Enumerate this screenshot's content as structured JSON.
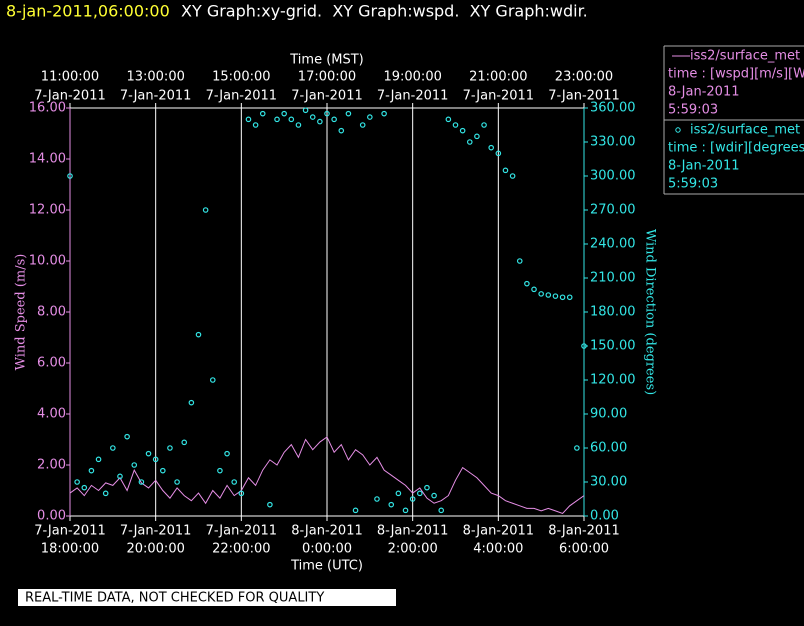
{
  "header": {
    "timestamp": "8-jan-2011,06:00:00",
    "graphs": "XY Graph:xy-grid.  XY Graph:wspd.  XY Graph:wdir."
  },
  "footer": "REAL-TIME DATA, NOT CHECKED FOR QUALITY",
  "chart_data": {
    "type": "xy",
    "x_top_label": "Time (MST)",
    "xlabel": "Time (UTC)",
    "ylabel": "Wind Speed (m/s)",
    "y2label": "Wind Direction (degrees)",
    "xlim": [
      0,
      720
    ],
    "xticks": [
      {
        "value": 0,
        "label": "18:00:00",
        "date": "7-Jan-2011"
      },
      {
        "value": 120,
        "label": "20:00:00",
        "date": "7-Jan-2011"
      },
      {
        "value": 240,
        "label": "22:00:00",
        "date": "7-Jan-2011"
      },
      {
        "value": 360,
        "label": "0:00:00",
        "date": "8-Jan-2011"
      },
      {
        "value": 480,
        "label": "2:00:00",
        "date": "8-Jan-2011"
      },
      {
        "value": 600,
        "label": "4:00:00",
        "date": "8-Jan-2011"
      },
      {
        "value": 720,
        "label": "6:00:00",
        "date": "8-Jan-2011"
      }
    ],
    "x2ticks": [
      {
        "value": 0,
        "label": "11:00:00",
        "date": "7-Jan-2011"
      },
      {
        "value": 120,
        "label": "13:00:00",
        "date": "7-Jan-2011"
      },
      {
        "value": 240,
        "label": "15:00:00",
        "date": "7-Jan-2011"
      },
      {
        "value": 360,
        "label": "17:00:00",
        "date": "7-Jan-2011"
      },
      {
        "value": 480,
        "label": "19:00:00",
        "date": "7-Jan-2011"
      },
      {
        "value": 600,
        "label": "21:00:00",
        "date": "7-Jan-2011"
      },
      {
        "value": 720,
        "label": "23:00:00",
        "date": "7-Jan-2011"
      }
    ],
    "grid": true,
    "ylim": [
      0,
      16
    ],
    "yticks": [
      {
        "value": 0,
        "label": "0.00"
      },
      {
        "value": 2,
        "label": "2.00"
      },
      {
        "value": 4,
        "label": "4.00"
      },
      {
        "value": 6,
        "label": "6.00"
      },
      {
        "value": 8,
        "label": "8.00"
      },
      {
        "value": 10,
        "label": "10.00"
      },
      {
        "value": 12,
        "label": "12.00"
      },
      {
        "value": 14,
        "label": "14.00"
      },
      {
        "value": 16,
        "label": "16.00"
      }
    ],
    "y2lim": [
      0,
      360
    ],
    "y2ticks": [
      {
        "value": 0,
        "label": "0.00"
      },
      {
        "value": 30,
        "label": "30.00"
      },
      {
        "value": 60,
        "label": "60.00"
      },
      {
        "value": 90,
        "label": "90.00"
      },
      {
        "value": 120,
        "label": "120.00"
      },
      {
        "value": 150,
        "label": "150.00"
      },
      {
        "value": 180,
        "label": "180.00"
      },
      {
        "value": 210,
        "label": "210.00"
      },
      {
        "value": 240,
        "label": "240.00"
      },
      {
        "value": 270,
        "label": "270.00"
      },
      {
        "value": 300,
        "label": "300.00"
      },
      {
        "value": 330,
        "label": "330.00"
      },
      {
        "value": 360,
        "label": "360.00"
      }
    ],
    "x": [
      0,
      10,
      20,
      30,
      40,
      50,
      60,
      70,
      80,
      90,
      100,
      110,
      120,
      130,
      140,
      150,
      160,
      170,
      180,
      190,
      200,
      210,
      220,
      230,
      240,
      250,
      260,
      270,
      280,
      290,
      300,
      310,
      320,
      330,
      340,
      350,
      360,
      370,
      380,
      390,
      400,
      410,
      420,
      430,
      440,
      450,
      460,
      470,
      480,
      490,
      500,
      510,
      520,
      530,
      540,
      550,
      560,
      570,
      580,
      590,
      600,
      610,
      620,
      630,
      640,
      650,
      660,
      670,
      680,
      690,
      700,
      710,
      720
    ],
    "series": [
      {
        "name": "iss2/surface_met",
        "legend_lines": [
          "time : [wspd][m/s][Wind",
          "8-Jan-2011",
          "5:59:03"
        ],
        "type": "line",
        "color": "#e58ee5",
        "values": [
          0.9,
          1.1,
          0.8,
          1.2,
          1.0,
          1.3,
          1.2,
          1.5,
          1.0,
          1.8,
          1.3,
          1.1,
          1.4,
          1.0,
          0.7,
          1.1,
          0.8,
          0.6,
          0.9,
          0.5,
          1.0,
          0.7,
          1.2,
          0.8,
          1.0,
          1.5,
          1.2,
          1.8,
          2.2,
          2.0,
          2.5,
          2.8,
          2.3,
          3.0,
          2.6,
          2.9,
          3.1,
          2.5,
          2.8,
          2.2,
          2.6,
          2.4,
          2.0,
          2.3,
          1.8,
          1.6,
          1.4,
          1.2,
          0.9,
          1.1,
          0.7,
          0.5,
          0.6,
          0.8,
          1.4,
          1.9,
          1.7,
          1.5,
          1.2,
          0.9,
          0.8,
          0.6,
          0.5,
          0.4,
          0.3,
          0.3,
          0.2,
          0.3,
          0.2,
          0.1,
          0.4,
          0.6,
          0.8
        ]
      },
      {
        "name": "iss2/surface_met",
        "legend_lines": [
          "time : [wdir][degrees][V",
          "8-Jan-2011",
          "5:59:03"
        ],
        "type": "scatter",
        "axis": "y2",
        "color": "#33e6e6",
        "values": [
          300,
          30,
          25,
          40,
          50,
          20,
          60,
          35,
          70,
          45,
          30,
          55,
          50,
          40,
          60,
          30,
          65,
          100,
          160,
          270,
          120,
          40,
          55,
          30,
          20,
          350,
          345,
          355,
          10,
          350,
          355,
          350,
          345,
          358,
          352,
          348,
          355,
          350,
          340,
          355,
          5,
          345,
          352,
          15,
          355,
          10,
          20,
          5,
          15,
          20,
          25,
          18,
          5,
          350,
          345,
          340,
          330,
          335,
          345,
          325,
          320,
          305,
          300,
          225,
          205,
          200,
          196,
          195,
          194,
          193,
          193,
          60,
          150
        ]
      }
    ]
  }
}
